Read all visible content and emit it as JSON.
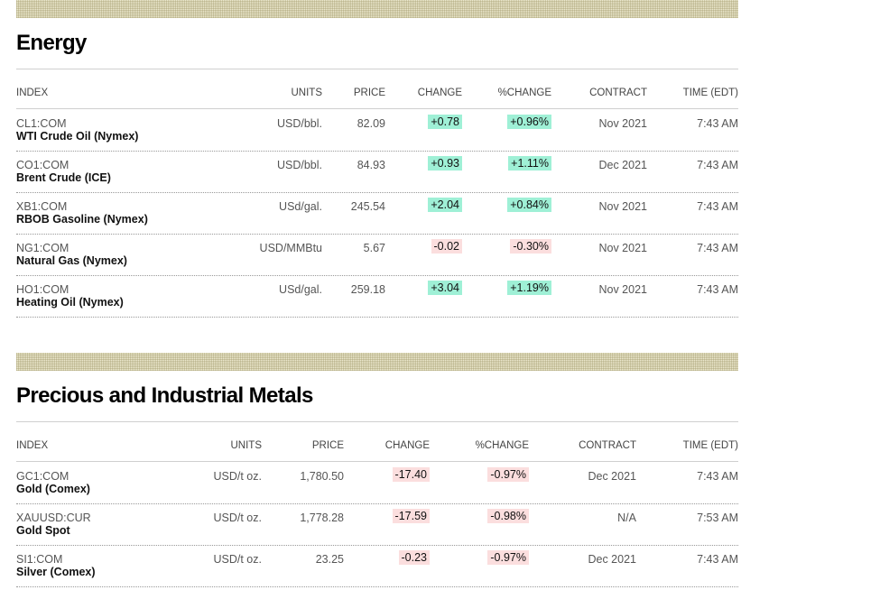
{
  "sections": [
    {
      "title": "Energy",
      "columns": [
        "INDEX",
        "UNITS",
        "PRICE",
        "CHANGE",
        "%CHANGE",
        "CONTRACT",
        "TIME (EDT)"
      ],
      "rows": [
        {
          "ticker": "CL1:COM",
          "name": "WTI Crude Oil (Nymex)",
          "units": "USD/bbl.",
          "price": "82.09",
          "change": "+0.78",
          "pct": "+0.96%",
          "contract": "Nov 2021",
          "time": "7:43 AM",
          "dir": "up"
        },
        {
          "ticker": "CO1:COM",
          "name": "Brent Crude (ICE)",
          "units": "USD/bbl.",
          "price": "84.93",
          "change": "+0.93",
          "pct": "+1.11%",
          "contract": "Dec 2021",
          "time": "7:43 AM",
          "dir": "up"
        },
        {
          "ticker": "XB1:COM",
          "name": "RBOB Gasoline (Nymex)",
          "units": "USd/gal.",
          "price": "245.54",
          "change": "+2.04",
          "pct": "+0.84%",
          "contract": "Nov 2021",
          "time": "7:43 AM",
          "dir": "up"
        },
        {
          "ticker": "NG1:COM",
          "name": "Natural Gas (Nymex)",
          "units": "USD/MMBtu",
          "price": "5.67",
          "change": "-0.02",
          "pct": "-0.30%",
          "contract": "Nov 2021",
          "time": "7:43 AM",
          "dir": "down"
        },
        {
          "ticker": "HO1:COM",
          "name": "Heating Oil (Nymex)",
          "units": "USd/gal.",
          "price": "259.18",
          "change": "+3.04",
          "pct": "+1.19%",
          "contract": "Nov 2021",
          "time": "7:43 AM",
          "dir": "up"
        }
      ]
    },
    {
      "title": "Precious and Industrial Metals",
      "columns": [
        "INDEX",
        "UNITS",
        "PRICE",
        "CHANGE",
        "%CHANGE",
        "CONTRACT",
        "TIME (EDT)"
      ],
      "rows": [
        {
          "ticker": "GC1:COM",
          "name": "Gold (Comex)",
          "units": "USD/t oz.",
          "price": "1,780.50",
          "change": "-17.40",
          "pct": "-0.97%",
          "contract": "Dec 2021",
          "time": "7:43 AM",
          "dir": "down"
        },
        {
          "ticker": "XAUUSD:CUR",
          "name": "Gold Spot",
          "units": "USD/t oz.",
          "price": "1,778.28",
          "change": "-17.59",
          "pct": "-0.98%",
          "contract": "N/A",
          "time": "7:53 AM",
          "dir": "down"
        },
        {
          "ticker": "SI1:COM",
          "name": "Silver (Comex)",
          "units": "USD/t oz.",
          "price": "23.25",
          "change": "-0.23",
          "pct": "-0.97%",
          "contract": "Dec 2021",
          "time": "7:43 AM",
          "dir": "down"
        }
      ]
    }
  ],
  "colors": {
    "up": "#9ff0d6",
    "down": "#fbdede"
  }
}
